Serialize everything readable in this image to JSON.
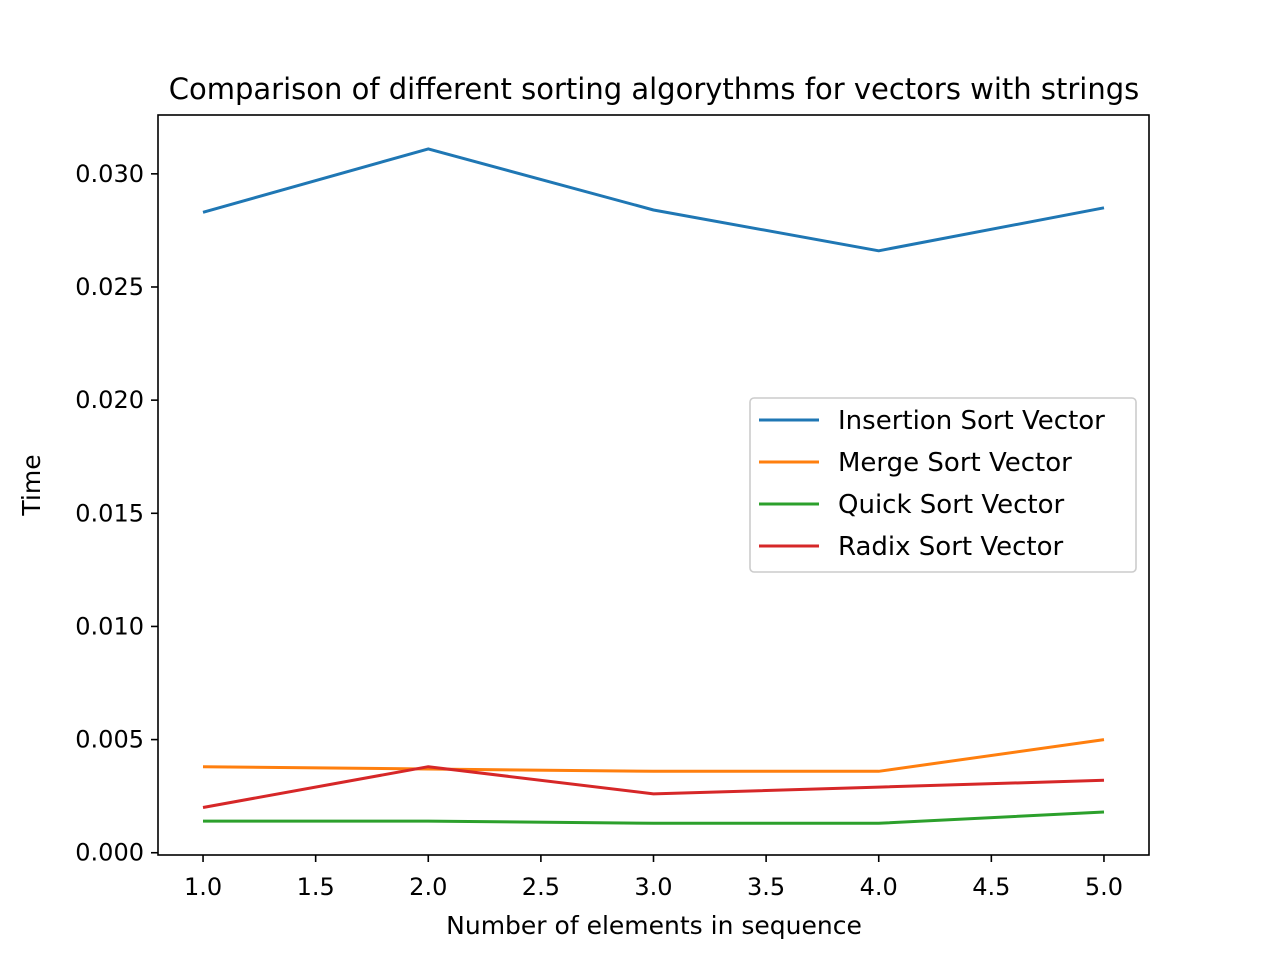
{
  "chart_data": {
    "type": "line",
    "title": "Comparison of different sorting algorythms for vectors with strings",
    "xlabel": "Number of elements in sequence",
    "ylabel": "Time",
    "x": [
      1.0,
      2.0,
      3.0,
      4.0,
      5.0
    ],
    "xlim": [
      0.8,
      5.2
    ],
    "ylim": [
      -0.0001,
      0.0326
    ],
    "xticks": [
      "1.0",
      "1.5",
      "2.0",
      "2.5",
      "3.0",
      "3.5",
      "4.0",
      "4.5",
      "5.0"
    ],
    "yticks": [
      "0.000",
      "0.005",
      "0.010",
      "0.015",
      "0.020",
      "0.025",
      "0.030"
    ],
    "grid": false,
    "legend_position": "center-right",
    "series": [
      {
        "name": "Insertion Sort Vector",
        "color": "#1f77b4",
        "values": [
          0.0283,
          0.0311,
          0.0284,
          0.0266,
          0.0285
        ]
      },
      {
        "name": "Merge Sort Vector",
        "color": "#ff7f0e",
        "values": [
          0.0038,
          0.0037,
          0.0036,
          0.0036,
          0.005
        ]
      },
      {
        "name": "Quick Sort Vector",
        "color": "#2ca02c",
        "values": [
          0.0014,
          0.0014,
          0.0013,
          0.0013,
          0.0018
        ]
      },
      {
        "name": "Radix Sort Vector",
        "color": "#d62728",
        "values": [
          0.002,
          0.0038,
          0.0026,
          0.0029,
          0.0032
        ]
      }
    ]
  }
}
